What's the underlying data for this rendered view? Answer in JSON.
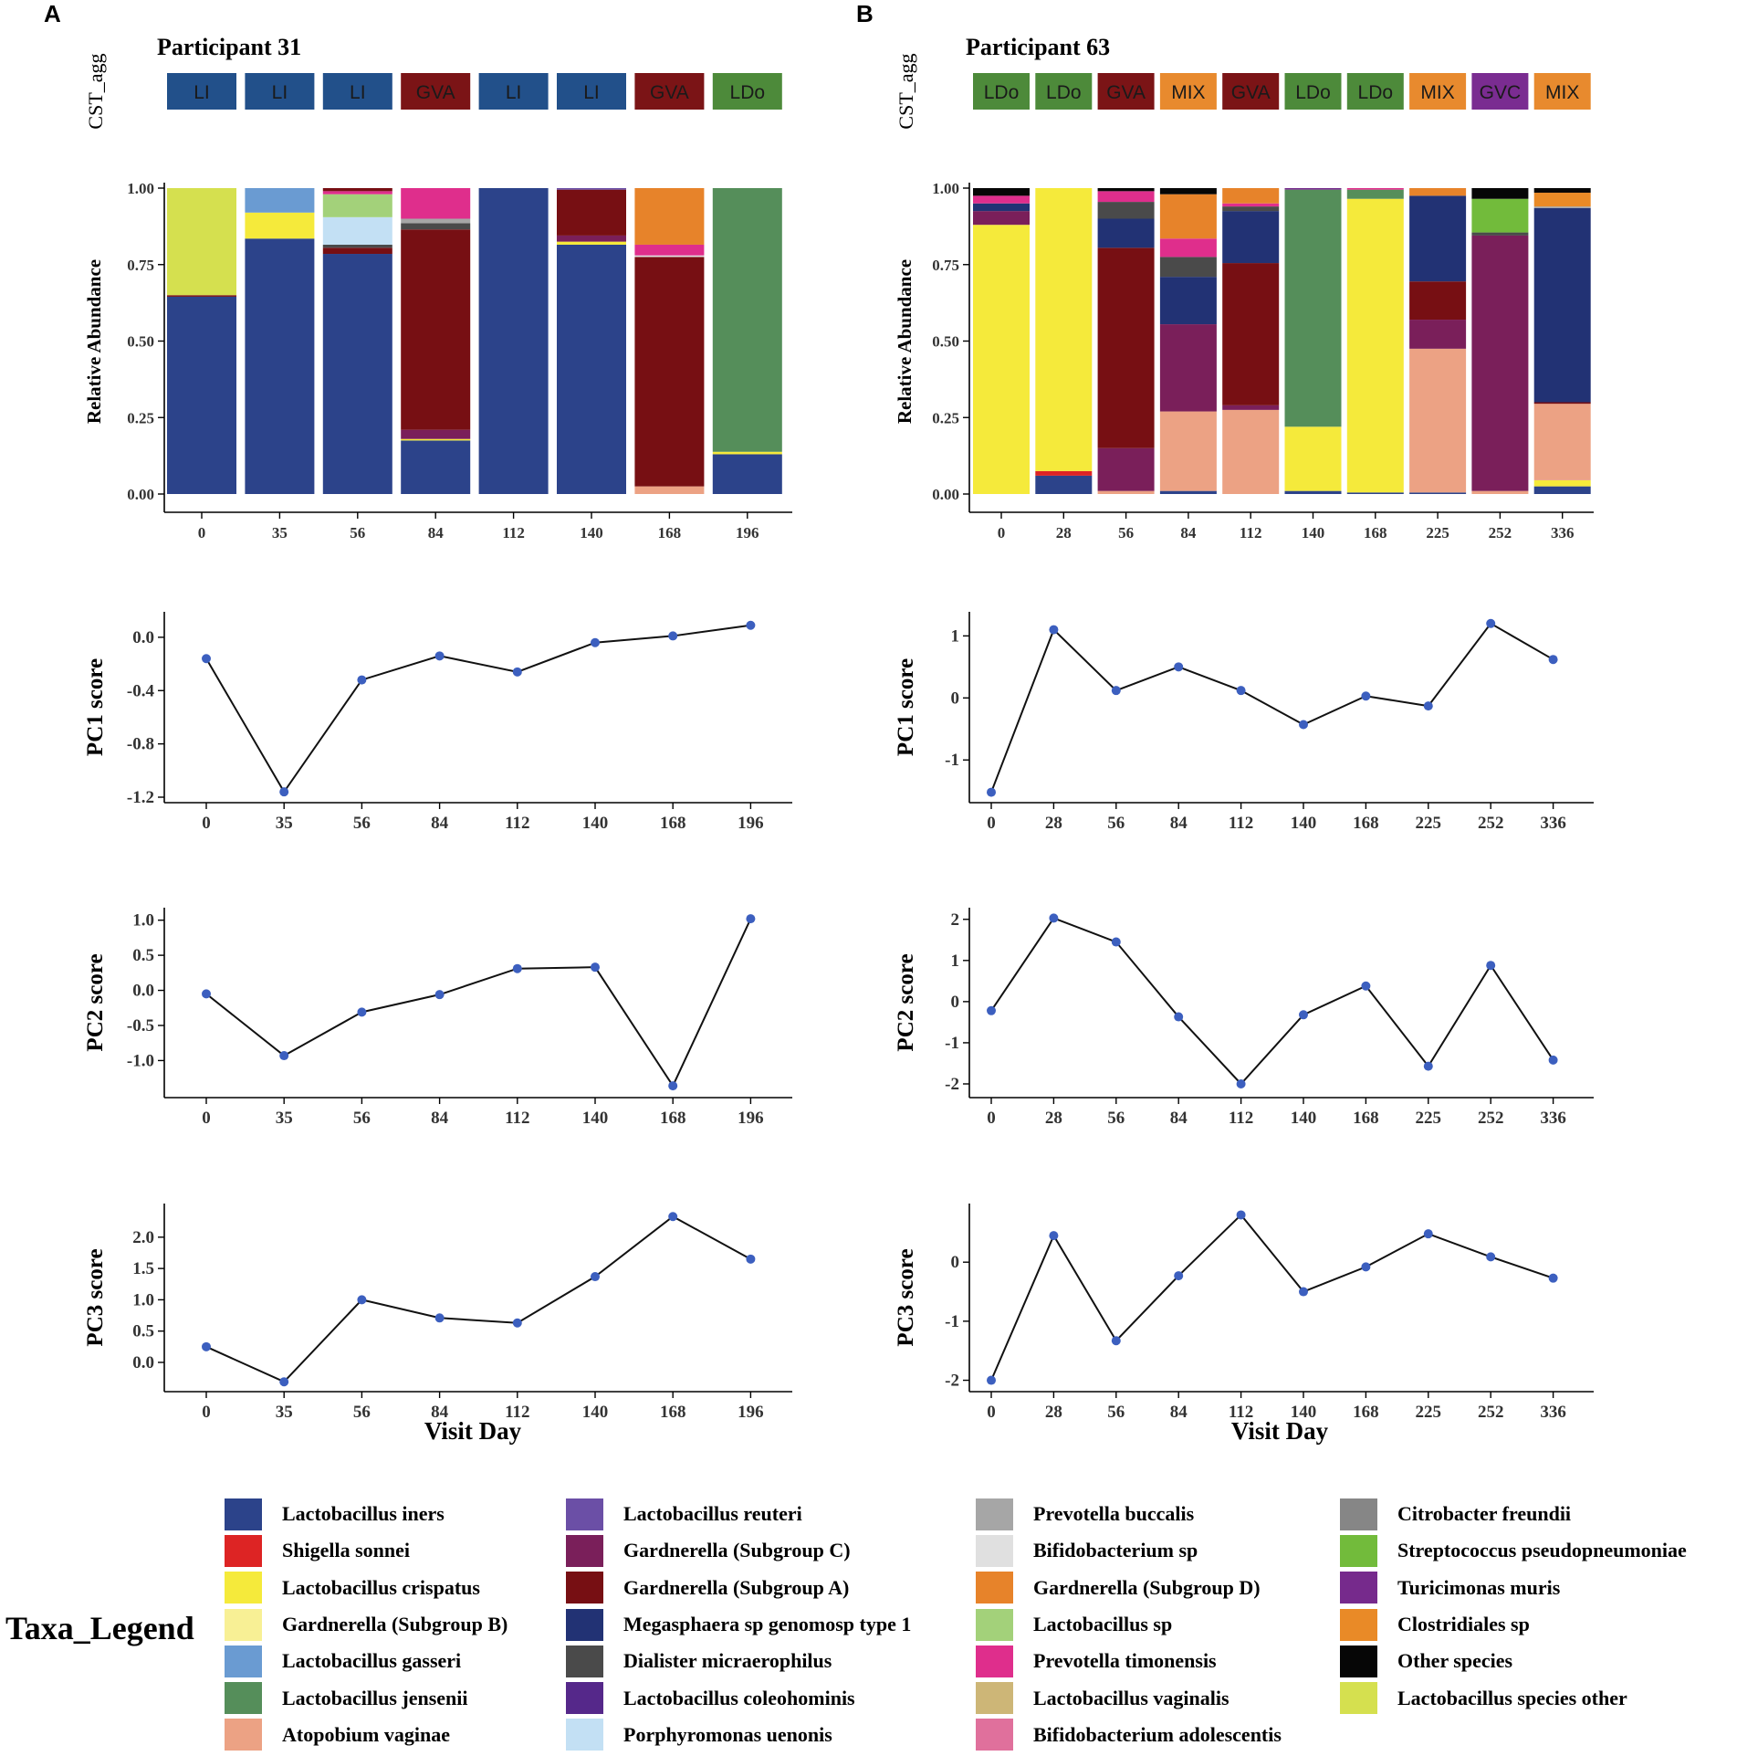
{
  "panels": [
    {
      "letter": "A",
      "title": "Participant 31",
      "cst_label": "CST_agg",
      "days": [
        "0",
        "35",
        "56",
        "84",
        "112",
        "140",
        "168",
        "196"
      ],
      "cst": [
        "LI",
        "LI",
        "LI",
        "GVA",
        "LI",
        "LI",
        "GVA",
        "LDo"
      ]
    },
    {
      "letter": "B",
      "title": "Participant 63",
      "cst_label": "CST_agg",
      "days": [
        "0",
        "28",
        "56",
        "84",
        "112",
        "140",
        "168",
        "225",
        "252",
        "336"
      ],
      "cst": [
        "LDo",
        "LDo",
        "GVA",
        "MIX",
        "GVA",
        "LDo",
        "LDo",
        "MIX",
        "GVC",
        "MIX"
      ]
    }
  ],
  "cst_colors": {
    "LI": "#22508a",
    "GVA": "#7b1416",
    "LDo": "#4d8a3a",
    "MIX": "#e88a2e",
    "GVC": "#7a2c91"
  },
  "taxa_colors": {
    "Lactobacillus iners": "#2c438a",
    "Shigella sonnei": "#dd2424",
    "Lactobacillus crispatus": "#f5ea3b",
    "Gardnerella (Subgroup B)": "#f8f095",
    "Lactobacillus gasseri": "#6a9bd2",
    "Lactobacillus jensenii": "#558e5a",
    "Atopobium vaginae": "#eca284",
    "Lactobacillus reuteri": "#6b4fa6",
    "Gardnerella (Subgroup C)": "#7a1f5a",
    "Gardnerella (Subgroup A)": "#770f13",
    "Megasphaera sp genomosp type 1": "#223274",
    "Dialister micraerophilus": "#4a4a4a",
    "Lactobacillus coleohominis": "#55288a",
    "Porphyromonas uenonis": "#c3e0f4",
    "Prevotella buccalis": "#a6a6a6",
    "Bifidobacterium sp": "#e0e0e0",
    "Gardnerella (Subgroup D)": "#e7832a",
    "Lactobacillus sp": "#a3d17a",
    "Prevotella timonensis": "#df2e8c",
    "Lactobacillus vaginalis": "#cdb677",
    "Bifidobacterium adolescentis": "#e0709c",
    "Citrobacter freundii": "#868686",
    "Streptococcus pseudopneumoniae": "#72bb3b",
    "Turicimonas muris": "#762a8c",
    "Clostridiales sp": "#e98a27",
    "Other species": "#060606",
    "Lactobacillus species other": "#d5e04f"
  },
  "chart_data": [
    {
      "type": "bar",
      "stacked": true,
      "panel": "A",
      "title": "Participant 31",
      "xlabel": "",
      "ylabel": "Relative Abundance",
      "ylim": [
        0,
        1
      ],
      "yticks": [
        "0.00",
        "0.25",
        "0.50",
        "0.75",
        "1.00"
      ],
      "categories": [
        "0",
        "35",
        "56",
        "84",
        "112",
        "140",
        "168",
        "196"
      ],
      "stacks": [
        [
          {
            "taxon": "Lactobacillus iners",
            "value": 0.645
          },
          {
            "taxon": "Gardnerella (Subgroup A)",
            "value": 0.005
          },
          {
            "taxon": "Lactobacillus species other",
            "value": 0.35
          }
        ],
        [
          {
            "taxon": "Lactobacillus iners",
            "value": 0.835
          },
          {
            "taxon": "Lactobacillus crispatus",
            "value": 0.085
          },
          {
            "taxon": "Lactobacillus gasseri",
            "value": 0.08
          }
        ],
        [
          {
            "taxon": "Lactobacillus iners",
            "value": 0.785
          },
          {
            "taxon": "Gardnerella (Subgroup A)",
            "value": 0.02
          },
          {
            "taxon": "Dialister micraerophilus",
            "value": 0.01
          },
          {
            "taxon": "Porphyromonas uenonis",
            "value": 0.09
          },
          {
            "taxon": "Lactobacillus sp",
            "value": 0.075
          },
          {
            "taxon": "Prevotella timonensis",
            "value": 0.01
          },
          {
            "taxon": "Gardnerella (Subgroup A)",
            "value": 0.01
          }
        ],
        [
          {
            "taxon": "Lactobacillus iners",
            "value": 0.175
          },
          {
            "taxon": "Lactobacillus crispatus",
            "value": 0.005
          },
          {
            "taxon": "Gardnerella (Subgroup C)",
            "value": 0.03
          },
          {
            "taxon": "Gardnerella (Subgroup A)",
            "value": 0.655
          },
          {
            "taxon": "Dialister micraerophilus",
            "value": 0.02
          },
          {
            "taxon": "Prevotella buccalis",
            "value": 0.015
          },
          {
            "taxon": "Prevotella timonensis",
            "value": 0.1
          }
        ],
        [
          {
            "taxon": "Lactobacillus iners",
            "value": 1.0
          }
        ],
        [
          {
            "taxon": "Lactobacillus iners",
            "value": 0.815
          },
          {
            "taxon": "Lactobacillus crispatus",
            "value": 0.01
          },
          {
            "taxon": "Gardnerella (Subgroup C)",
            "value": 0.02
          },
          {
            "taxon": "Gardnerella (Subgroup A)",
            "value": 0.15
          },
          {
            "taxon": "Lactobacillus reuteri",
            "value": 0.005
          }
        ],
        [
          {
            "taxon": "Atopobium vaginae",
            "value": 0.025
          },
          {
            "taxon": "Gardnerella (Subgroup A)",
            "value": 0.75
          },
          {
            "taxon": "Bifidobacterium sp",
            "value": 0.005
          },
          {
            "taxon": "Prevotella timonensis",
            "value": 0.035
          },
          {
            "taxon": "Gardnerella (Subgroup D)",
            "value": 0.185
          }
        ],
        [
          {
            "taxon": "Lactobacillus iners",
            "value": 0.13
          },
          {
            "taxon": "Lactobacillus crispatus",
            "value": 0.008
          },
          {
            "taxon": "Lactobacillus jensenii",
            "value": 0.862
          }
        ]
      ]
    },
    {
      "type": "bar",
      "stacked": true,
      "panel": "B",
      "title": "Participant 63",
      "xlabel": "",
      "ylabel": "Relative Abundance",
      "ylim": [
        0,
        1
      ],
      "yticks": [
        "0.00",
        "0.25",
        "0.50",
        "0.75",
        "1.00"
      ],
      "categories": [
        "0",
        "28",
        "56",
        "84",
        "112",
        "140",
        "168",
        "225",
        "252",
        "336"
      ],
      "stacks": [
        [
          {
            "taxon": "Lactobacillus crispatus",
            "value": 0.88
          },
          {
            "taxon": "Gardnerella (Subgroup C)",
            "value": 0.045
          },
          {
            "taxon": "Megasphaera sp genomosp type 1",
            "value": 0.025
          },
          {
            "taxon": "Prevotella timonensis",
            "value": 0.025
          },
          {
            "taxon": "Other species",
            "value": 0.025
          }
        ],
        [
          {
            "taxon": "Lactobacillus iners",
            "value": 0.06
          },
          {
            "taxon": "Shigella sonnei",
            "value": 0.015
          },
          {
            "taxon": "Lactobacillus crispatus",
            "value": 0.925
          }
        ],
        [
          {
            "taxon": "Atopobium vaginae",
            "value": 0.01
          },
          {
            "taxon": "Gardnerella (Subgroup C)",
            "value": 0.14
          },
          {
            "taxon": "Gardnerella (Subgroup A)",
            "value": 0.655
          },
          {
            "taxon": "Megasphaera sp genomosp type 1",
            "value": 0.095
          },
          {
            "taxon": "Dialister micraerophilus",
            "value": 0.055
          },
          {
            "taxon": "Prevotella timonensis",
            "value": 0.035
          },
          {
            "taxon": "Other species",
            "value": 0.01
          }
        ],
        [
          {
            "taxon": "Lactobacillus iners",
            "value": 0.01
          },
          {
            "taxon": "Atopobium vaginae",
            "value": 0.26
          },
          {
            "taxon": "Gardnerella (Subgroup C)",
            "value": 0.285
          },
          {
            "taxon": "Megasphaera sp genomosp type 1",
            "value": 0.155
          },
          {
            "taxon": "Dialister micraerophilus",
            "value": 0.065
          },
          {
            "taxon": "Prevotella timonensis",
            "value": 0.06
          },
          {
            "taxon": "Gardnerella (Subgroup D)",
            "value": 0.145
          },
          {
            "taxon": "Other species",
            "value": 0.02
          }
        ],
        [
          {
            "taxon": "Atopobium vaginae",
            "value": 0.275
          },
          {
            "taxon": "Gardnerella (Subgroup C)",
            "value": 0.015
          },
          {
            "taxon": "Gardnerella (Subgroup A)",
            "value": 0.465
          },
          {
            "taxon": "Megasphaera sp genomosp type 1",
            "value": 0.17
          },
          {
            "taxon": "Dialister micraerophilus",
            "value": 0.015
          },
          {
            "taxon": "Prevotella timonensis",
            "value": 0.01
          },
          {
            "taxon": "Gardnerella (Subgroup D)",
            "value": 0.05
          }
        ],
        [
          {
            "taxon": "Lactobacillus iners",
            "value": 0.01
          },
          {
            "taxon": "Lactobacillus crispatus",
            "value": 0.21
          },
          {
            "taxon": "Lactobacillus jensenii",
            "value": 0.775
          },
          {
            "taxon": "Turicimonas muris",
            "value": 0.005
          }
        ],
        [
          {
            "taxon": "Lactobacillus iners",
            "value": 0.005
          },
          {
            "taxon": "Lactobacillus crispatus",
            "value": 0.96
          },
          {
            "taxon": "Lactobacillus jensenii",
            "value": 0.03
          },
          {
            "taxon": "Prevotella timonensis",
            "value": 0.005
          }
        ],
        [
          {
            "taxon": "Lactobacillus iners",
            "value": 0.005
          },
          {
            "taxon": "Atopobium vaginae",
            "value": 0.47
          },
          {
            "taxon": "Gardnerella (Subgroup C)",
            "value": 0.095
          },
          {
            "taxon": "Gardnerella (Subgroup A)",
            "value": 0.125
          },
          {
            "taxon": "Megasphaera sp genomosp type 1",
            "value": 0.28
          },
          {
            "taxon": "Gardnerella (Subgroup D)",
            "value": 0.025
          }
        ],
        [
          {
            "taxon": "Atopobium vaginae",
            "value": 0.01
          },
          {
            "taxon": "Gardnerella (Subgroup C)",
            "value": 0.835
          },
          {
            "taxon": "Dialister micraerophilus",
            "value": 0.01
          },
          {
            "taxon": "Streptococcus pseudopneumoniae",
            "value": 0.11
          },
          {
            "taxon": "Other species",
            "value": 0.035
          }
        ],
        [
          {
            "taxon": "Lactobacillus iners",
            "value": 0.025
          },
          {
            "taxon": "Lactobacillus crispatus",
            "value": 0.02
          },
          {
            "taxon": "Atopobium vaginae",
            "value": 0.25
          },
          {
            "taxon": "Gardnerella (Subgroup A)",
            "value": 0.005
          },
          {
            "taxon": "Megasphaera sp genomosp type 1",
            "value": 0.635
          },
          {
            "taxon": "Prevotella buccalis",
            "value": 0.005
          },
          {
            "taxon": "Clostridiales sp",
            "value": 0.045
          },
          {
            "taxon": "Other species",
            "value": 0.015
          }
        ]
      ]
    },
    {
      "type": "line",
      "panel": "A",
      "xlabel": "",
      "ylabel": "PC1 score",
      "categories": [
        "0",
        "35",
        "56",
        "84",
        "112",
        "140",
        "168",
        "196"
      ],
      "values": [
        -0.16,
        -1.16,
        -0.32,
        -0.14,
        -0.26,
        -0.04,
        0.01,
        0.09
      ],
      "ylim": [
        -1.2,
        0.15
      ],
      "yticks": [
        -1.2,
        -0.8,
        -0.4,
        0.0
      ],
      "ytick_labels": [
        "-1.2",
        "-0.8",
        "-0.4",
        "0.0"
      ]
    },
    {
      "type": "line",
      "panel": "B",
      "xlabel": "",
      "ylabel": "PC1 score",
      "categories": [
        "0",
        "28",
        "56",
        "84",
        "112",
        "140",
        "168",
        "225",
        "252",
        "336"
      ],
      "values": [
        -1.52,
        1.1,
        0.12,
        0.5,
        0.12,
        -0.43,
        0.03,
        -0.13,
        1.2,
        0.62
      ],
      "ylim": [
        -1.6,
        1.3
      ],
      "yticks": [
        -1,
        0,
        1
      ],
      "ytick_labels": [
        "-1",
        "0",
        "1"
      ]
    },
    {
      "type": "line",
      "panel": "A",
      "xlabel": "",
      "ylabel": "PC2 score",
      "categories": [
        "0",
        "35",
        "56",
        "84",
        "112",
        "140",
        "168",
        "196"
      ],
      "values": [
        -0.05,
        -0.93,
        -0.31,
        -0.06,
        0.31,
        0.33,
        -1.36,
        1.02
      ],
      "ylim": [
        -1.45,
        1.1
      ],
      "yticks": [
        -1.0,
        -0.5,
        0.0,
        0.5,
        1.0
      ],
      "ytick_labels": [
        "-1.0",
        "-0.5",
        "0.0",
        "0.5",
        "1.0"
      ]
    },
    {
      "type": "line",
      "panel": "B",
      "xlabel": "",
      "ylabel": "PC2 score",
      "categories": [
        "0",
        "28",
        "56",
        "84",
        "112",
        "140",
        "168",
        "225",
        "252",
        "336"
      ],
      "values": [
        -0.22,
        2.03,
        1.45,
        -0.37,
        -2.0,
        -0.32,
        0.38,
        -1.57,
        0.88,
        -1.42
      ],
      "ylim": [
        -2.2,
        2.15
      ],
      "yticks": [
        -2,
        -1,
        0,
        1,
        2
      ],
      "ytick_labels": [
        "-2",
        "-1",
        "0",
        "1",
        "2"
      ]
    },
    {
      "type": "line",
      "panel": "A",
      "xlabel": "Visit Day",
      "ylabel": "PC3 score",
      "categories": [
        "0",
        "35",
        "56",
        "84",
        "112",
        "140",
        "168",
        "196"
      ],
      "values": [
        0.25,
        -0.31,
        1.0,
        0.71,
        0.63,
        1.37,
        2.33,
        1.65
      ],
      "ylim": [
        -0.38,
        2.45
      ],
      "yticks": [
        0.0,
        0.5,
        1.0,
        1.5,
        2.0
      ],
      "ytick_labels": [
        "0.0",
        "0.5",
        "1.0",
        "1.5",
        "2.0"
      ]
    },
    {
      "type": "line",
      "panel": "B",
      "xlabel": "Visit Day",
      "ylabel": "PC3 score",
      "categories": [
        "0",
        "28",
        "56",
        "84",
        "112",
        "140",
        "168",
        "225",
        "252",
        "336"
      ],
      "values": [
        -2.0,
        0.45,
        -1.33,
        -0.23,
        0.8,
        -0.5,
        -0.08,
        0.48,
        0.09,
        -0.27
      ],
      "ylim": [
        -2.1,
        0.9
      ],
      "yticks": [
        -2,
        -1,
        0
      ],
      "ytick_labels": [
        "-2",
        "-1",
        "0"
      ]
    }
  ],
  "legend": {
    "title": "Taxa_Legend",
    "columns": [
      [
        "Lactobacillus iners",
        "Shigella sonnei",
        "Lactobacillus crispatus",
        "Gardnerella (Subgroup B)",
        "Lactobacillus gasseri",
        "Lactobacillus jensenii",
        "Atopobium vaginae"
      ],
      [
        "Lactobacillus reuteri",
        "Gardnerella (Subgroup C)",
        "Gardnerella (Subgroup A)",
        "Megasphaera sp genomosp type 1",
        "Dialister micraerophilus",
        "Lactobacillus coleohominis",
        "Porphyromonas uenonis"
      ],
      [
        "Prevotella buccalis",
        "Bifidobacterium sp",
        "Gardnerella (Subgroup D)",
        "Lactobacillus sp",
        "Prevotella timonensis",
        "Lactobacillus vaginalis",
        "Bifidobacterium adolescentis"
      ],
      [
        "Citrobacter freundii",
        "Streptococcus pseudopneumoniae",
        "Turicimonas muris",
        "Clostridiales sp",
        "Other species",
        "Lactobacillus species other"
      ]
    ]
  }
}
